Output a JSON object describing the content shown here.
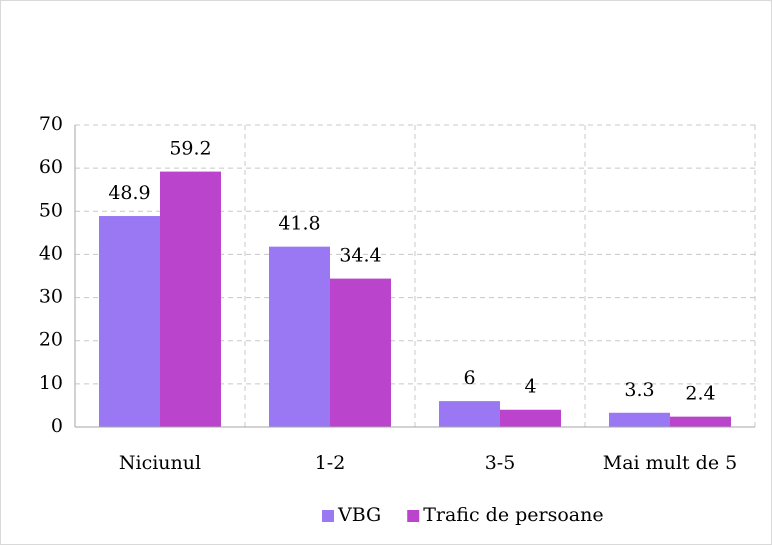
{
  "chart_data": {
    "type": "bar",
    "categories": [
      "Niciunul",
      "1-2",
      "3-5",
      "Mai mult de 5"
    ],
    "series": [
      {
        "name": "VBG",
        "color": "#9a78f4",
        "values": [
          48.9,
          41.8,
          6,
          3.3
        ]
      },
      {
        "name": "Trafic de persoane",
        "color": "#bb44cc",
        "values": [
          59.2,
          34.4,
          4,
          2.4
        ]
      }
    ],
    "ylim": [
      0,
      70
    ],
    "yticks": [
      0,
      10,
      20,
      30,
      40,
      50,
      60,
      70
    ],
    "grid": true,
    "legend": "bottom"
  }
}
